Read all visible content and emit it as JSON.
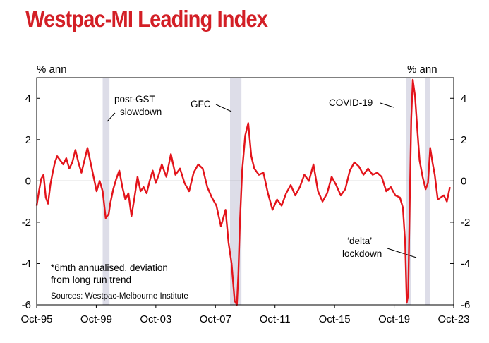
{
  "chart_data": {
    "type": "line",
    "title": "Westpac-MI Leading Index",
    "ylabel_left": "% ann",
    "ylabel_right": "% ann",
    "ylim": [
      -6,
      5
    ],
    "xlim": [
      1995.75,
      2023.25
    ],
    "yticks": [
      -6,
      -4,
      -2,
      0,
      2,
      4
    ],
    "ytick_labels": [
      "-6",
      "-4",
      "-2",
      "0",
      "2",
      "4"
    ],
    "xticks": [
      {
        "x": 1995.75,
        "label": "Oct-95"
      },
      {
        "x": 1999.75,
        "label": "Oct-99"
      },
      {
        "x": 2003.75,
        "label": "Oct-03"
      },
      {
        "x": 2007.75,
        "label": "Oct-07"
      },
      {
        "x": 2011.75,
        "label": "Oct-11"
      },
      {
        "x": 2015.75,
        "label": "Oct-15"
      },
      {
        "x": 2019.75,
        "label": "Oct-19"
      },
      {
        "x": 2023.75,
        "label": "Oct-23"
      }
    ],
    "grid": false,
    "colors": {
      "line": "#e3141b",
      "title": "#d31f26",
      "shade": "#dddde8",
      "zero_line": "#888888"
    },
    "shaded_periods": [
      {
        "start": 2000.1,
        "end": 2000.55
      },
      {
        "start": 2008.5,
        "end": 2009.25
      },
      {
        "start": 2020.1,
        "end": 2020.45
      },
      {
        "start": 2021.35,
        "end": 2021.7
      }
    ],
    "annotations": [
      {
        "lines": [
          "post-GST",
          "slowdown"
        ]
      },
      {
        "lines": [
          "GFC"
        ]
      },
      {
        "lines": [
          "COVID-19"
        ]
      },
      {
        "lines": [
          "‘delta’",
          "lockdown"
        ]
      }
    ],
    "footnote": [
      "*6mth annualised, deviation",
      "from long run trend"
    ],
    "source": "Sources: Westpac-Melbourne Institute",
    "series": [
      {
        "x": [
          1995.75,
          1995.9,
          1996.05,
          1996.2,
          1996.35,
          1996.5,
          1996.65,
          1996.8,
          1996.95,
          1997.1,
          1997.3,
          1997.5,
          1997.7,
          1997.9,
          1998.1,
          1998.3,
          1998.5,
          1998.7,
          1998.9,
          1999.1,
          1999.3,
          1999.5,
          1999.7,
          1999.9,
          2000.1,
          2000.3,
          2000.5,
          2000.6,
          2000.8,
          2001.0,
          2001.2,
          2001.4,
          2001.6,
          2001.8,
          2002.0,
          2002.2,
          2002.4,
          2002.6,
          2002.8,
          2003.0,
          2003.2,
          2003.4,
          2003.6,
          2003.8,
          2004.0,
          2004.3,
          2004.6,
          2004.9,
          2005.2,
          2005.5,
          2005.8,
          2006.1,
          2006.4,
          2006.7,
          2007.0,
          2007.3,
          2007.6,
          2007.9,
          2008.2,
          2008.4,
          2008.6,
          2008.8,
          2008.95,
          2009.05,
          2009.15,
          2009.3,
          2009.5,
          2009.7,
          2009.9,
          2010.1,
          2010.4,
          2010.7,
          2011.0,
          2011.3,
          2011.6,
          2011.9,
          2012.2,
          2012.5,
          2012.8,
          2013.1,
          2013.4,
          2013.7,
          2014.0,
          2014.3,
          2014.6,
          2014.9,
          2015.2,
          2015.5,
          2015.8,
          2016.1,
          2016.4,
          2016.7,
          2017.0,
          2017.3,
          2017.6,
          2017.9,
          2018.2,
          2018.5,
          2018.8,
          2019.1,
          2019.4,
          2019.7,
          2019.9,
          2020.05,
          2020.15,
          2020.25,
          2020.35,
          2020.45,
          2020.55,
          2020.7,
          2020.85,
          2021.0,
          2021.2,
          2021.4,
          2021.55,
          2021.7,
          2021.85,
          2022.0,
          2022.2,
          2022.4,
          2022.6,
          2022.8,
          2023.0
        ],
        "y": [
          -1.2,
          -0.5,
          0.1,
          0.3,
          -0.8,
          -1.1,
          -0.2,
          0.4,
          0.9,
          1.2,
          1.0,
          0.8,
          1.1,
          0.6,
          0.9,
          1.5,
          0.9,
          0.4,
          1.0,
          1.6,
          0.9,
          0.2,
          -0.5,
          0.0,
          -0.5,
          -1.8,
          -1.6,
          -1.1,
          -0.4,
          0.1,
          0.5,
          -0.3,
          -0.9,
          -0.6,
          -1.7,
          -0.8,
          0.2,
          -0.5,
          -0.3,
          -0.6,
          0.0,
          0.5,
          -0.1,
          0.3,
          0.8,
          0.2,
          1.3,
          0.3,
          0.6,
          -0.1,
          -0.5,
          0.4,
          0.8,
          0.6,
          -0.3,
          -0.8,
          -1.2,
          -2.2,
          -1.4,
          -3.0,
          -4.0,
          -5.8,
          -6.0,
          -4.5,
          -2.0,
          0.5,
          2.2,
          2.8,
          1.2,
          0.6,
          0.3,
          0.4,
          -0.6,
          -1.4,
          -0.9,
          -1.2,
          -0.6,
          -0.2,
          -0.7,
          -0.3,
          0.3,
          0.0,
          0.8,
          -0.5,
          -1.0,
          -0.6,
          0.2,
          -0.2,
          -0.7,
          -0.4,
          0.5,
          0.9,
          0.7,
          0.3,
          0.6,
          0.3,
          0.4,
          0.2,
          -0.5,
          -0.3,
          -0.7,
          -0.8,
          -1.3,
          -3.0,
          -5.9,
          -5.5,
          -1.0,
          3.0,
          4.9,
          4.1,
          2.5,
          1.0,
          0.2,
          -0.4,
          -0.1,
          1.6,
          0.9,
          0.3,
          -0.9,
          -0.8,
          -0.7,
          -1.0,
          -0.3
        ]
      }
    ]
  }
}
